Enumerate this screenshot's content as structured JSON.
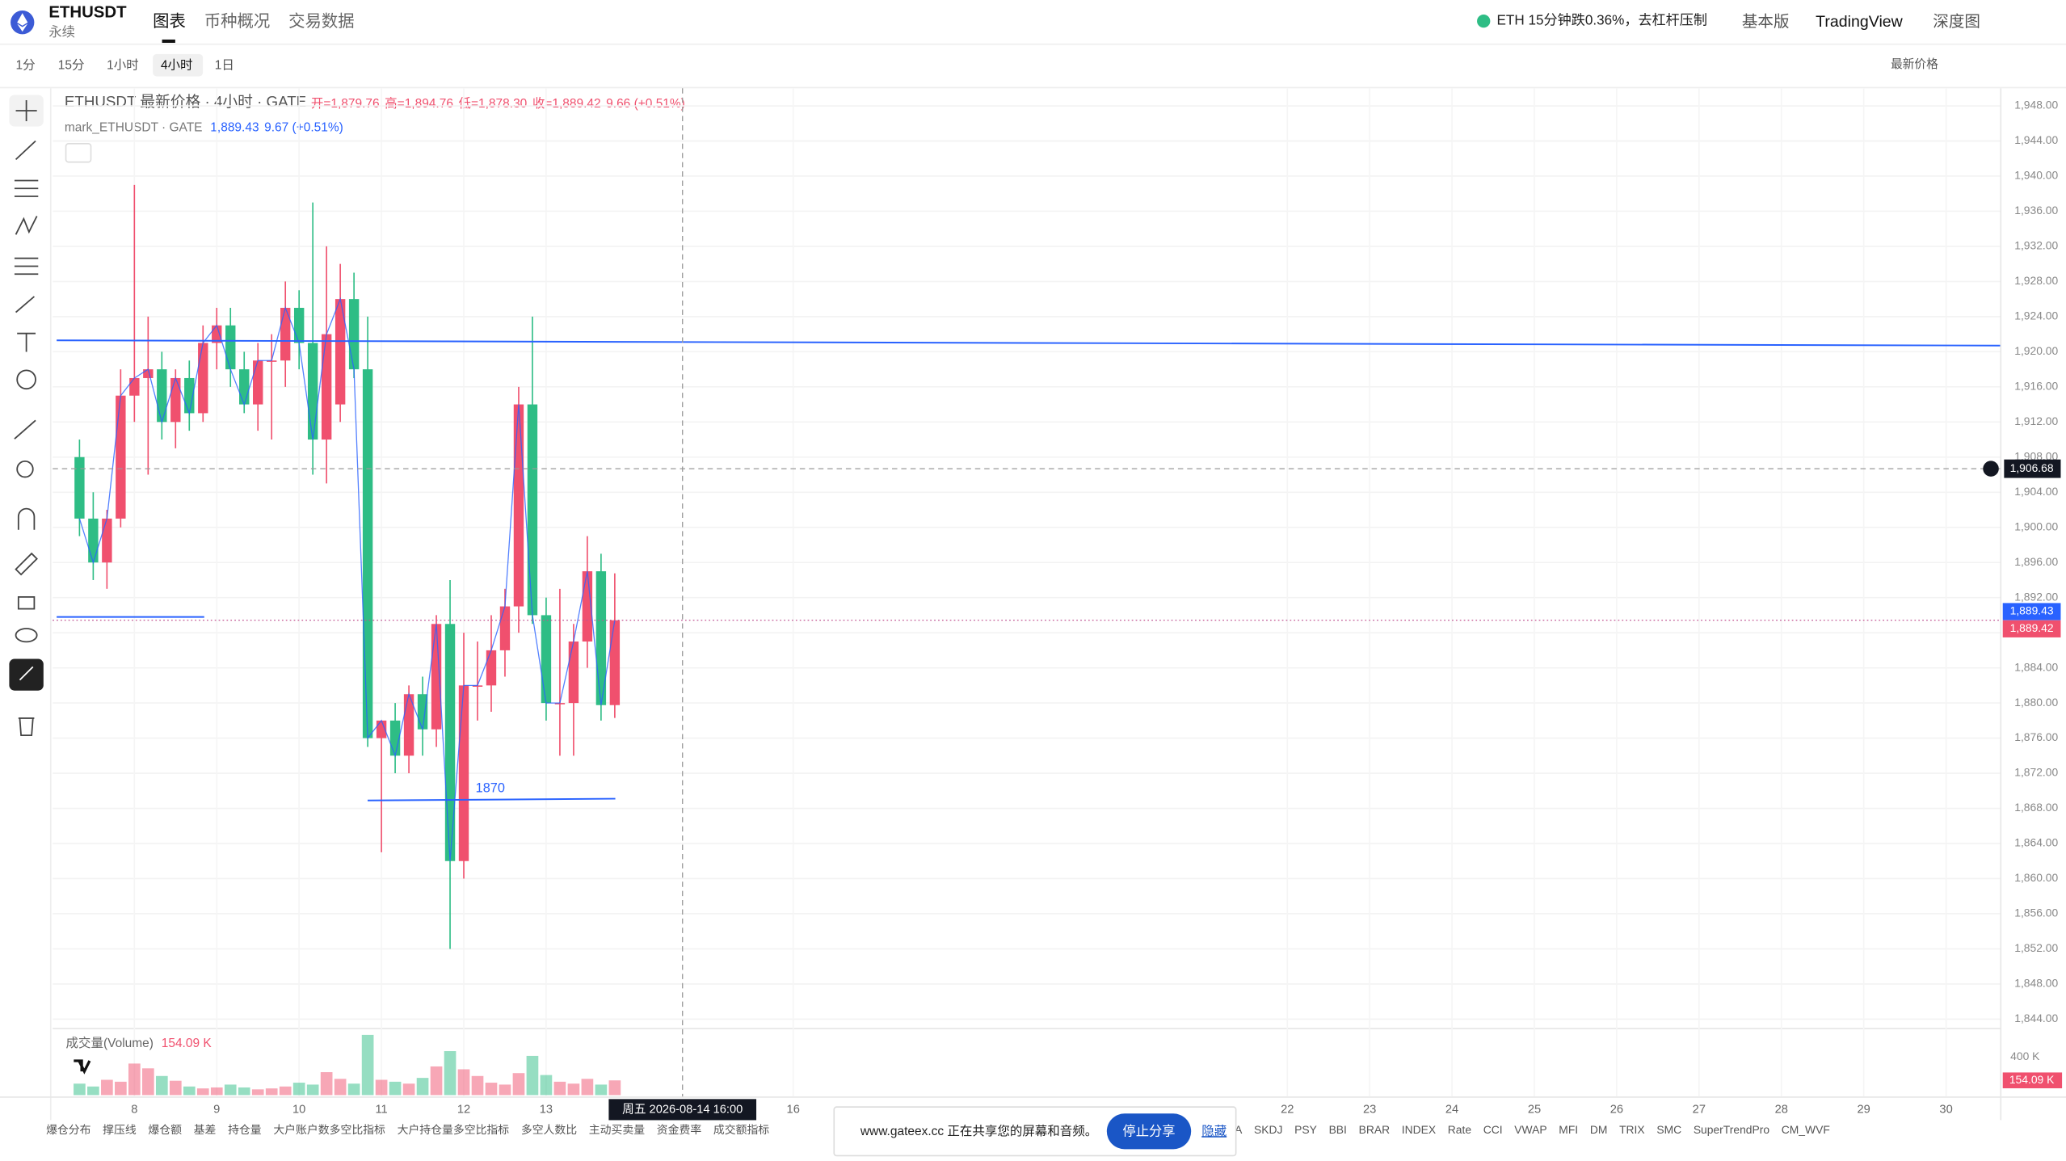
{
  "header": {
    "symbol": "ETHUSDT",
    "subtitle": "永续",
    "tabs": [
      "图表",
      "币种概况",
      "交易数据"
    ],
    "active_tab": "图表",
    "news": "ETH 15分钟跌0.36%，去杠杆压制",
    "links": [
      "基本版",
      "TradingView",
      "深度图"
    ]
  },
  "toolbar": {
    "intervals": [
      "1分",
      "15分",
      "1小时",
      "4小时",
      "1日"
    ],
    "active_interval": "4小时",
    "price_source": "最新价格"
  },
  "legend": {
    "title": "ETHUSDT 最新价格 · 4小时 · GATE",
    "ohlc": [
      "开=1,879.76",
      "高=1,894.76",
      "低=1,878.30",
      "收=1,889.42"
    ],
    "change": "9.66 (+0.51%)",
    "mark_title": "mark_ETHUSDT · GATE",
    "mark_price": "1,889.43",
    "mark_change": "9.67 (+0.51%)"
  },
  "chart_data": {
    "type": "candlestick",
    "open": [
      1908,
      1901,
      1896,
      1901,
      1915,
      1917,
      1918,
      1912,
      1917,
      1913,
      1921,
      1923,
      1918,
      1914,
      1919,
      1919,
      1925,
      1921,
      1910,
      1914,
      1926,
      1918,
      1876,
      1878,
      1874,
      1881,
      1877,
      1889,
      1862,
      1882,
      1882,
      1886,
      1891,
      1914,
      1890,
      1880,
      1880,
      1887,
      1895,
      1879.76
    ],
    "high": [
      1910,
      1904,
      1902,
      1918,
      1939,
      1924,
      1920,
      1918,
      1919,
      1923,
      1925,
      1925,
      1920,
      1921,
      1922,
      1928,
      1927,
      1937,
      1932,
      1930,
      1929,
      1924,
      1878,
      1880,
      1882,
      1883,
      1890,
      1894,
      1888,
      1887,
      1890,
      1893,
      1916,
      1924,
      1892,
      1893,
      1889,
      1899,
      1897,
      1894.76
    ],
    "low": [
      1899,
      1894,
      1893,
      1900,
      1912,
      1906,
      1910,
      1909,
      1911,
      1912,
      1918,
      1916,
      1913,
      1911,
      1910,
      1916,
      1918,
      1906,
      1905,
      1912,
      1917,
      1875,
      1863,
      1872,
      1872,
      1874,
      1875,
      1852,
      1860,
      1878,
      1879,
      1883,
      1888,
      1889,
      1878,
      1874,
      1874,
      1884,
      1878,
      1878.3
    ],
    "close": [
      1901,
      1896,
      1901,
      1915,
      1917,
      1918,
      1912,
      1917,
      1913,
      1921,
      1923,
      1918,
      1914,
      1919,
      1919,
      1925,
      1921,
      1910,
      1922,
      1926,
      1918,
      1876,
      1878,
      1874,
      1881,
      1877,
      1889,
      1862,
      1882,
      1882,
      1886,
      1891,
      1914,
      1890,
      1880,
      1880,
      1887,
      1895,
      1879.76,
      1889.42
    ],
    "colors": {
      "up": "#f0506e",
      "down": "#2ebd85",
      "mark_line": "#2962ff"
    },
    "ylim": [
      1843,
      1950
    ],
    "yticks": [
      {
        "value": 1948,
        "label": "1,948.00"
      },
      {
        "value": 1944,
        "label": "1,944.00"
      },
      {
        "value": 1940,
        "label": "1,940.00"
      },
      {
        "value": 1936,
        "label": "1,936.00"
      },
      {
        "value": 1932,
        "label": "1,932.00"
      },
      {
        "value": 1928,
        "label": "1,928.00"
      },
      {
        "value": 1924,
        "label": "1,924.00"
      },
      {
        "value": 1920,
        "label": "1,920.00"
      },
      {
        "value": 1916,
        "label": "1,916.00"
      },
      {
        "value": 1912,
        "label": "1,912.00"
      },
      {
        "value": 1908,
        "label": "1,908.00"
      },
      {
        "value": 1904,
        "label": "1,904.00"
      },
      {
        "value": 1900,
        "label": "1,900.00"
      },
      {
        "value": 1896,
        "label": "1,896.00"
      },
      {
        "value": 1892,
        "label": "1,892.00"
      },
      {
        "value": 1888,
        "label": "1,888.00"
      },
      {
        "value": 1884,
        "label": "1,884.00"
      },
      {
        "value": 1880,
        "label": "1,880.00"
      },
      {
        "value": 1876,
        "label": "1,876.00"
      },
      {
        "value": 1872,
        "label": "1,872.00"
      },
      {
        "value": 1868,
        "label": "1,868.00"
      },
      {
        "value": 1864,
        "label": "1,864.00"
      },
      {
        "value": 1860,
        "label": "1,860.00"
      },
      {
        "value": 1856,
        "label": "1,856.00"
      },
      {
        "value": 1852,
        "label": "1,852.00"
      },
      {
        "value": 1848,
        "label": "1,848.00"
      },
      {
        "value": 1844,
        "label": "1,844.00"
      }
    ],
    "xticks": [
      8,
      9,
      10,
      11,
      12,
      13,
      16,
      22,
      23,
      24,
      25,
      26,
      27,
      28,
      29,
      30
    ],
    "crosshair": {
      "price": {
        "value": 1906.68,
        "label": "1,906.68"
      },
      "time": "周五 2026-08-14  16:00"
    },
    "last_labels": [
      {
        "value": 1889.43,
        "label": "1,889.43",
        "color": "#2962ff"
      },
      {
        "value": 1889.42,
        "label": "1,889.42",
        "color": "#f0506e"
      }
    ],
    "drawings": [
      {
        "start": 1921.3,
        "end": 1920.7
      },
      {
        "start": 1889.8,
        "end": 1889.8
      },
      {
        "start": 1868.9,
        "end": 1869.1,
        "label": "1870"
      }
    ],
    "volume": {
      "title": "成交量(Volume)",
      "last_label": "154.09 K",
      "values": [
        120,
        90,
        160,
        140,
        330,
        280,
        200,
        150,
        90,
        70,
        80,
        110,
        80,
        60,
        70,
        90,
        130,
        110,
        240,
        170,
        120,
        630,
        160,
        140,
        120,
        180,
        300,
        460,
        270,
        200,
        130,
        110,
        230,
        410,
        210,
        140,
        120,
        170,
        110,
        154.09
      ],
      "ylim": [
        0,
        703
      ],
      "yticks": [
        {
          "value": 400,
          "label": "400 K"
        }
      ],
      "last": {
        "value": 154.09,
        "label": "154.09 K"
      }
    }
  },
  "indicators_left": [
    "爆仓分布",
    "撑压线",
    "爆仓额",
    "基差",
    "持仓量",
    "大户账户数多空比指标",
    "大户持仓量多空比指标",
    "多空人数比",
    "主动买卖量",
    "资金费率",
    "成交额指标"
  ],
  "indicators_right": [
    "MA",
    "SKDJ",
    "PSY",
    "BBI",
    "BRAR",
    "INDEX",
    "Rate",
    "CCI",
    "VWAP",
    "MFI",
    "DM",
    "TRIX",
    "SMC",
    "SuperTrendPro",
    "CM_WVF"
  ],
  "share_popup": {
    "message": "www.gateex.cc 正在共享您的屏幕和音频。",
    "stop": "停止分享",
    "hide": "隐藏"
  }
}
